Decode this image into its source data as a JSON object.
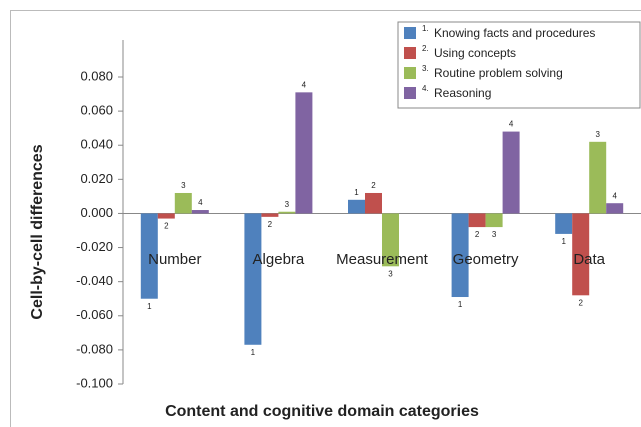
{
  "chart_data": {
    "type": "bar",
    "x_label": "Content and cognitive domain categories",
    "y_label": "Cell-by-cell differences",
    "categories": [
      "Number",
      "Algebra",
      "Measurement",
      "Geometry",
      "Data"
    ],
    "series": [
      {
        "name": "Knowing facts and procedures",
        "legend_prefix": "1.",
        "bar_label": "1",
        "color": "#4f81bd",
        "values": [
          -0.05,
          -0.077,
          0.008,
          -0.049,
          -0.012
        ]
      },
      {
        "name": "Using concepts",
        "legend_prefix": "2.",
        "bar_label": "2",
        "color": "#c0504d",
        "values": [
          -0.003,
          -0.002,
          0.012,
          -0.008,
          -0.048
        ]
      },
      {
        "name": "Routine problem solving",
        "legend_prefix": "3.",
        "bar_label": "3",
        "color": "#9bbb59",
        "values": [
          0.012,
          0.001,
          -0.031,
          -0.008,
          0.042
        ]
      },
      {
        "name": "Reasoning",
        "legend_prefix": "4.",
        "bar_label": "4",
        "color": "#8064a2",
        "values": [
          0.002,
          0.071,
          null,
          0.048,
          0.006
        ]
      }
    ],
    "ylim": [
      -0.1,
      0.08
    ],
    "yticks": [
      {
        "value": 0.08,
        "label": "0.080"
      },
      {
        "value": 0.06,
        "label": "0.060"
      },
      {
        "value": 0.04,
        "label": "0.040"
      },
      {
        "value": 0.02,
        "label": "0.020"
      },
      {
        "value": 0,
        "label": "0.000"
      },
      {
        "value": -0.02,
        "label": "-0.020"
      },
      {
        "value": -0.04,
        "label": "-0.040"
      },
      {
        "value": -0.06,
        "label": "-0.060"
      },
      {
        "value": -0.08,
        "label": "-0.080"
      },
      {
        "value": -0.1,
        "label": "-0.100"
      }
    ],
    "legend": "top-right"
  }
}
